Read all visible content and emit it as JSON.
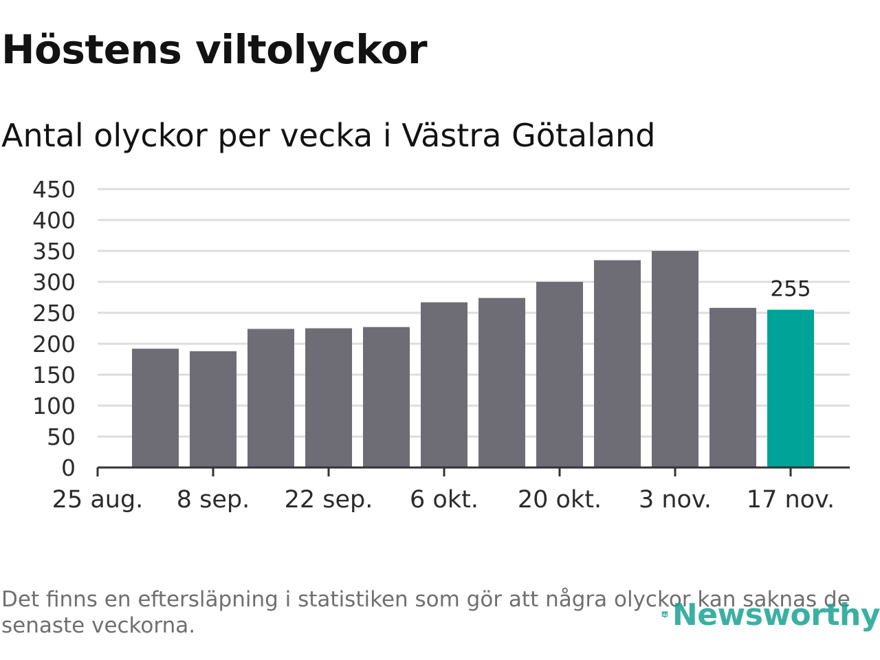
{
  "title": "Höstens viltolyckor",
  "subtitle": "Antal olyckor per vecka i Västra Götaland",
  "footnote": "Det finns en eftersläpning i statistiken som gör att några olyckor kan saknas de senaste veckorna.",
  "brand": {
    "name": "Newsworthy",
    "icon": "newsworthy-logo-icon"
  },
  "colors": {
    "bar": "#6e6d75",
    "highlight": "#00a398",
    "grid": "#dddddd",
    "axis": "#333333"
  },
  "chart_data": {
    "type": "bar",
    "title": "Höstens viltolyckor",
    "subtitle": "Antal olyckor per vecka i Västra Götaland",
    "xlabel": "",
    "ylabel": "",
    "ylim": [
      0,
      450
    ],
    "yticks": [
      "0",
      "50",
      "100",
      "150",
      "200",
      "250",
      "300",
      "350",
      "400",
      "450"
    ],
    "xticks": [
      "25 aug.",
      "8 sep.",
      "22 sep.",
      "6 okt.",
      "20 okt.",
      "3 nov.",
      "17 nov."
    ],
    "values": [
      192,
      188,
      224,
      225,
      227,
      267,
      274,
      300,
      335,
      350,
      258,
      255
    ],
    "highlight_index": 11,
    "highlight_label": "255",
    "grid": true
  }
}
